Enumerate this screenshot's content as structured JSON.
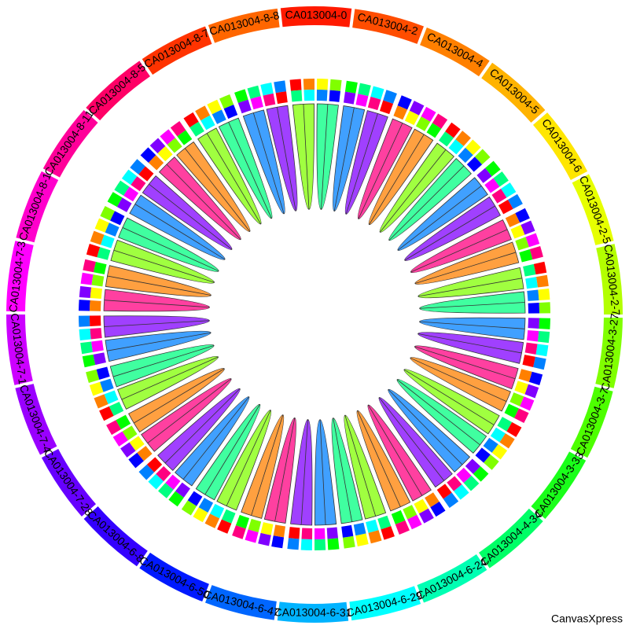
{
  "chart_data": {
    "type": "chord",
    "groups": [
      {
        "name": "CA013004-0",
        "color": "#ff1a00",
        "size": 4
      },
      {
        "name": "CA013004-2",
        "color": "#ff4d00",
        "size": 4
      },
      {
        "name": "CA013004-4",
        "color": "#ff8000",
        "size": 4
      },
      {
        "name": "CA013004-5",
        "color": "#ffb300",
        "size": 4
      },
      {
        "name": "CA013004-6",
        "color": "#ffe600",
        "size": 4
      },
      {
        "name": "CA013004-2-5",
        "color": "#e6ff00",
        "size": 4
      },
      {
        "name": "CA013004-2-7",
        "color": "#b3ff00",
        "size": 4
      },
      {
        "name": "CA013004-3-27",
        "color": "#80ff00",
        "size": 4
      },
      {
        "name": "CA013004-3-7",
        "color": "#4dff00",
        "size": 4
      },
      {
        "name": "CA013004-3-33",
        "color": "#1aff1a",
        "size": 4
      },
      {
        "name": "CA013004-4-34",
        "color": "#00ff66",
        "size": 4
      },
      {
        "name": "CA013004-6-24",
        "color": "#00ffb3",
        "size": 4
      },
      {
        "name": "CA013004-6-29",
        "color": "#00ffff",
        "size": 4
      },
      {
        "name": "CA013004-6-31",
        "color": "#00b3ff",
        "size": 4
      },
      {
        "name": "CA013004-6-47",
        "color": "#0066ff",
        "size": 4
      },
      {
        "name": "CA013004-6-50",
        "color": "#0019ff",
        "size": 4
      },
      {
        "name": "CA013004-6-8",
        "color": "#3300ff",
        "size": 4
      },
      {
        "name": "CA013004-7-28",
        "color": "#6600ff",
        "size": 4
      },
      {
        "name": "CA013004-7-4",
        "color": "#9900ff",
        "size": 4
      },
      {
        "name": "CA013004-7-1",
        "color": "#cc00ff",
        "size": 4
      },
      {
        "name": "CA013004-7-3",
        "color": "#ff00ff",
        "size": 4
      },
      {
        "name": "CA013004-8-1",
        "color": "#ff00cc",
        "size": 4
      },
      {
        "name": "CA013004-8-11",
        "color": "#ff0099",
        "size": 4
      },
      {
        "name": "CA013004-8-5",
        "color": "#ff0066",
        "size": 4
      },
      {
        "name": "CA013004-8-7",
        "color": "#ff3300",
        "size": 4
      },
      {
        "name": "CA013004-8-8",
        "color": "#ff6600",
        "size": 4
      }
    ],
    "palette": [
      "#ff0000",
      "#ff8000",
      "#ffff00",
      "#80ff00",
      "#00ff00",
      "#00ff80",
      "#00ffff",
      "#0080ff",
      "#0000ff",
      "#8000ff",
      "#ff00ff",
      "#ff0080"
    ],
    "links": [
      [
        0,
        1
      ],
      [
        2,
        3
      ],
      [
        4,
        5
      ],
      [
        6,
        7
      ],
      [
        8,
        9
      ],
      [
        10,
        11
      ],
      [
        12,
        13
      ],
      [
        14,
        15
      ],
      [
        16,
        17
      ],
      [
        18,
        19
      ],
      [
        20,
        21
      ],
      [
        22,
        23
      ],
      [
        24,
        25
      ],
      [
        26,
        27
      ],
      [
        28,
        29
      ],
      [
        30,
        31
      ],
      [
        32,
        33
      ],
      [
        34,
        35
      ],
      [
        36,
        37
      ],
      [
        38,
        39
      ],
      [
        40,
        41
      ],
      [
        42,
        43
      ],
      [
        44,
        45
      ],
      [
        46,
        47
      ],
      [
        48,
        49
      ],
      [
        50,
        51
      ],
      [
        52,
        53
      ],
      [
        54,
        55
      ],
      [
        56,
        57
      ],
      [
        58,
        59
      ],
      [
        60,
        61
      ],
      [
        62,
        63
      ],
      [
        64,
        65
      ],
      [
        66,
        67
      ],
      [
        68,
        69
      ],
      [
        70,
        71
      ],
      [
        72,
        73
      ],
      [
        74,
        75
      ],
      [
        76,
        77
      ],
      [
        78,
        79
      ],
      [
        80,
        81
      ],
      [
        82,
        83
      ],
      [
        84,
        85
      ],
      [
        86,
        87
      ],
      [
        88,
        89
      ],
      [
        90,
        91
      ],
      [
        92,
        93
      ],
      [
        94,
        95
      ],
      [
        96,
        97
      ],
      [
        98,
        99
      ],
      [
        100,
        101
      ],
      [
        102,
        103
      ]
    ]
  },
  "footer": "CanvasXpress"
}
